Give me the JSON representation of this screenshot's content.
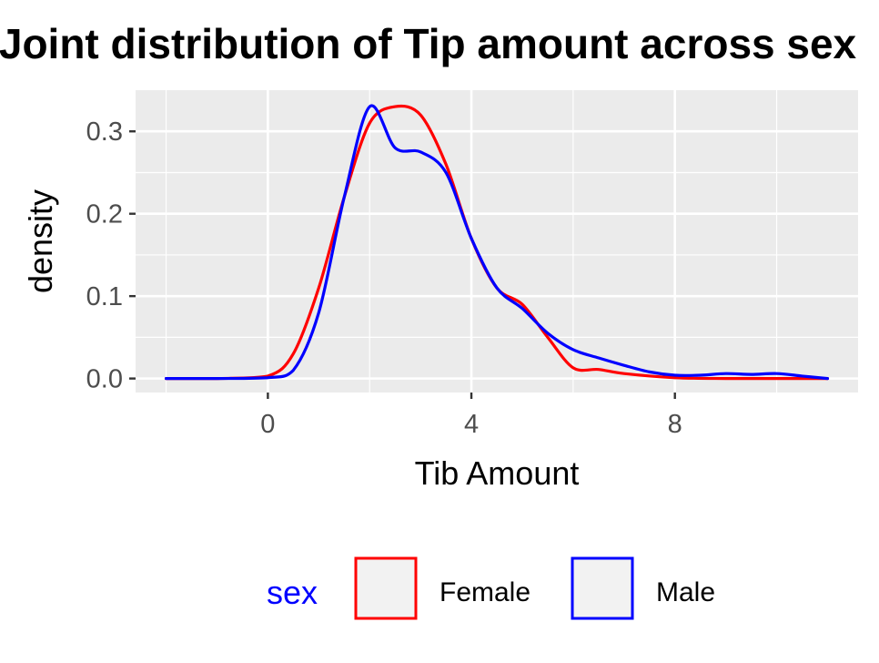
{
  "chart_data": {
    "type": "line",
    "title": "Joint distribution of Tip amount across sex",
    "xlabel": "Tib Amount",
    "ylabel": "density",
    "xlim": [
      -2.6,
      11.6
    ],
    "ylim": [
      -0.017,
      0.35
    ],
    "xticks": [
      0,
      4,
      8
    ],
    "xtick_labels": [
      "0",
      "4",
      "8"
    ],
    "yticks": [
      0.0,
      0.1,
      0.2,
      0.3
    ],
    "ytick_labels": [
      "0.0",
      "0.1",
      "0.2",
      "0.3"
    ],
    "grid": true,
    "legend": {
      "title": "sex",
      "position": "bottom"
    },
    "series": [
      {
        "name": "Female",
        "color": "#ff0000",
        "x": [
          -2,
          -1,
          0,
          0.5,
          1,
          1.5,
          2,
          2.5,
          3,
          3.5,
          4,
          4.5,
          5,
          5.5,
          6,
          6.5,
          7,
          8,
          9,
          10,
          11
        ],
        "y": [
          0.0,
          0.0,
          0.003,
          0.03,
          0.11,
          0.22,
          0.31,
          0.33,
          0.32,
          0.26,
          0.17,
          0.11,
          0.09,
          0.05,
          0.013,
          0.011,
          0.006,
          0.001,
          0.0,
          0.0,
          0.0
        ]
      },
      {
        "name": "Male",
        "color": "#0000ff",
        "x": [
          -2,
          -1,
          0,
          0.5,
          1,
          1.5,
          2,
          2.5,
          3,
          3.5,
          4,
          4.5,
          5,
          5.5,
          6,
          6.5,
          7,
          7.5,
          8,
          8.5,
          9,
          9.5,
          10,
          10.5,
          11
        ],
        "y": [
          0.0,
          0.0,
          0.001,
          0.01,
          0.08,
          0.22,
          0.33,
          0.28,
          0.275,
          0.25,
          0.17,
          0.11,
          0.085,
          0.055,
          0.035,
          0.025,
          0.016,
          0.008,
          0.004,
          0.004,
          0.006,
          0.005,
          0.006,
          0.003,
          0.0
        ]
      }
    ]
  }
}
